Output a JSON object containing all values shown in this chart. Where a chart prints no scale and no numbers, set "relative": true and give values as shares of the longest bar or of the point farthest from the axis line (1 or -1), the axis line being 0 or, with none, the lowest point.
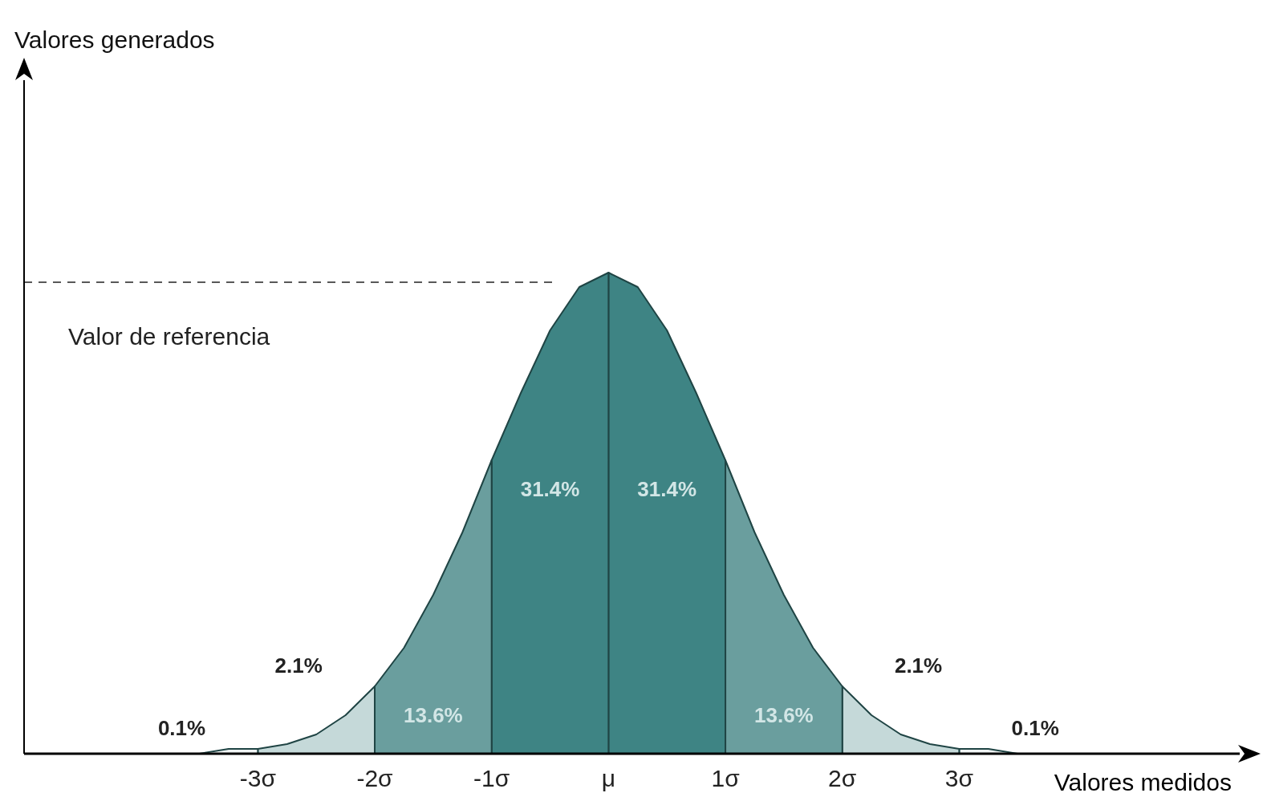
{
  "chart_data": {
    "type": "area",
    "xlabel": "Valores medidos",
    "relative": true,
    "xlim": [
      -5,
      5.4
    ],
    "xticks": [
      {
        "value": -3,
        "label": "-3σ"
      },
      {
        "value": -2,
        "label": "-2σ"
      },
      {
        "value": -1,
        "label": "-1σ"
      },
      {
        "value": 0,
        "label": "μ"
      },
      {
        "value": 1,
        "label": "1σ"
      },
      {
        "value": 2,
        "label": "2σ"
      },
      {
        "value": 3,
        "label": "3σ"
      }
    ],
    "grid": false,
    "legend": false,
    "series": [
      {
        "color": "#eef3f3",
        "x": [
          -4,
          -3.5,
          -3.25,
          -3,
          -3
        ],
        "values": [
          0,
          0,
          0.01,
          0.01,
          0
        ]
      },
      {
        "color": "#c5d9d9",
        "x": [
          -3,
          -3,
          -2.75,
          -2.5,
          -2.25,
          -2,
          -2
        ],
        "values": [
          0,
          0.01,
          0.02,
          0.04,
          0.08,
          0.14,
          0
        ]
      },
      {
        "color": "#6a9e9e",
        "x": [
          -2,
          -2,
          -1.75,
          -1.5,
          -1.25,
          -1,
          -1
        ],
        "values": [
          0,
          0.14,
          0.22,
          0.33,
          0.46,
          0.61,
          0
        ]
      },
      {
        "color": "#3e8484",
        "x": [
          -1,
          -1,
          -0.75,
          -0.5,
          -0.25,
          0,
          0
        ],
        "values": [
          0,
          0.61,
          0.75,
          0.88,
          0.97,
          1,
          0
        ]
      },
      {
        "color": "#3e8484",
        "x": [
          0,
          0,
          0.25,
          0.5,
          0.75,
          1,
          1
        ],
        "values": [
          0,
          1,
          0.97,
          0.88,
          0.75,
          0.61,
          0
        ]
      },
      {
        "color": "#6a9e9e",
        "x": [
          1,
          1,
          1.25,
          1.5,
          1.75,
          2,
          2
        ],
        "values": [
          0,
          0.61,
          0.46,
          0.33,
          0.22,
          0.14,
          0
        ]
      },
      {
        "color": "#c5d9d9",
        "x": [
          2,
          2,
          2.25,
          2.5,
          2.75,
          3,
          3
        ],
        "values": [
          0,
          0.14,
          0.08,
          0.04,
          0.02,
          0.01,
          0
        ]
      },
      {
        "color": "#eef3f3",
        "x": [
          3,
          3,
          3.25,
          3.5,
          4
        ],
        "values": [
          0,
          0.01,
          0.01,
          0,
          0
        ]
      }
    ],
    "ref_lines": [
      {
        "axis": "y",
        "value": 0.98,
        "label": "Valor de referencia",
        "line_style": "dashed"
      }
    ],
    "annotations": [
      "0.1%",
      "2.1%",
      "13.6%",
      "31.4%",
      "31.4%",
      "13.6%",
      "2.1%",
      "0.1%",
      "Valores generados"
    ]
  }
}
